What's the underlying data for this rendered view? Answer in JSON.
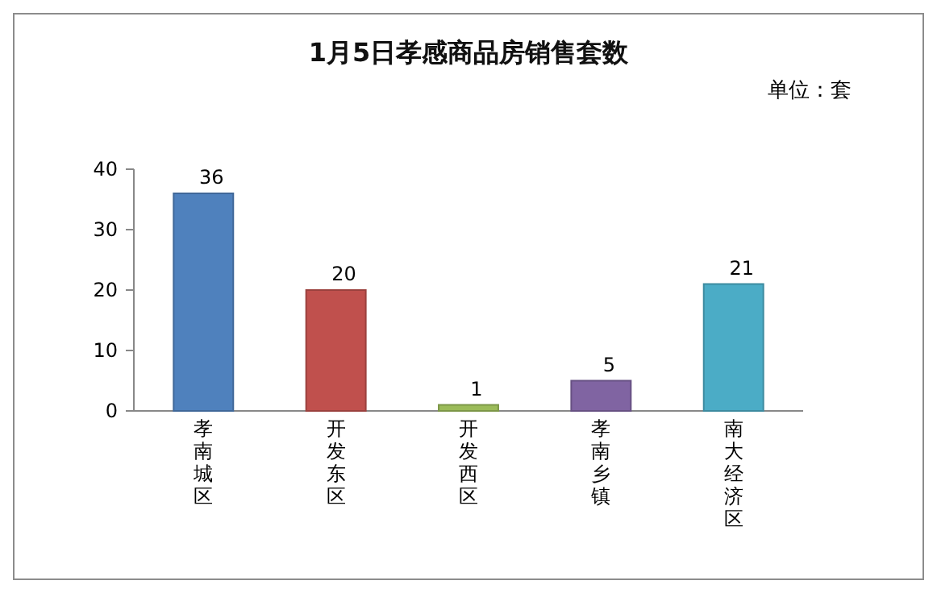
{
  "chart_data": {
    "type": "bar",
    "title": "1月5日孝感商品房销售套数",
    "annotations": [
      "单位：套"
    ],
    "categories": [
      "孝南城区",
      "开发东区",
      "开发西区",
      "孝南乡镇",
      "南大经济区"
    ],
    "values": [
      36,
      20,
      1,
      5,
      21
    ],
    "colors": [
      "#4f81bd",
      "#c0504d",
      "#9bbb59",
      "#8064a2",
      "#4bacc6"
    ],
    "ylim": [
      0,
      40
    ],
    "yticks": [
      0,
      10,
      20,
      30,
      40
    ],
    "data_labels": true
  }
}
